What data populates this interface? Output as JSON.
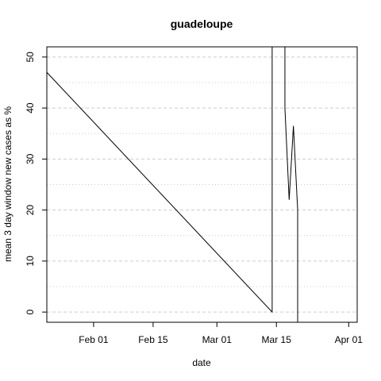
{
  "chart_data": {
    "type": "line",
    "title": "guadeloupe",
    "xlabel": "date",
    "ylabel": "mean  3  day window new cases as %",
    "x_ticks": [
      "Feb 01",
      "Feb 15",
      "Mar 01",
      "Mar 15",
      "Apr 01"
    ],
    "y_ticks": [
      "0",
      "10",
      "20",
      "30",
      "40",
      "50"
    ],
    "xlim": [
      "2020-01-21",
      "2020-04-03"
    ],
    "ylim": [
      -2,
      52
    ],
    "grid": "dashed horizontal",
    "series": [
      {
        "color": "#000000",
        "points": [
          {
            "x": "2020-01-21",
            "y": 52
          },
          {
            "x": "2020-01-21",
            "y": 47
          },
          {
            "x": "2020-03-14",
            "y": 0
          },
          {
            "x": "2020-03-14",
            "y": 52
          },
          {
            "x": "2020-03-17",
            "y": 52
          },
          {
            "x": "2020-03-17",
            "y": 40
          },
          {
            "x": "2020-03-18",
            "y": 22
          },
          {
            "x": "2020-03-19",
            "y": 36.5
          },
          {
            "x": "2020-03-20",
            "y": 20
          },
          {
            "x": "2020-03-20",
            "y": -2
          }
        ]
      }
    ]
  }
}
